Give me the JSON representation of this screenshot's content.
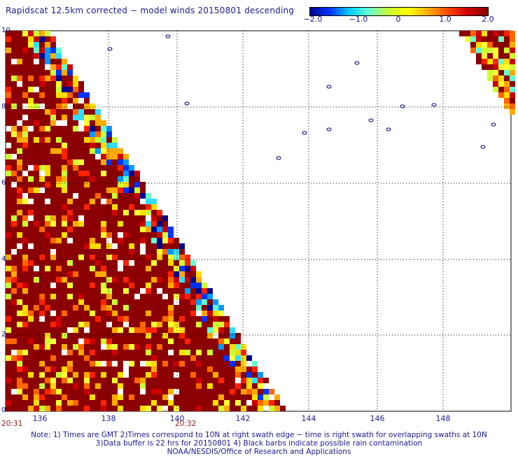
{
  "title": "Rapidscat 12.5km corrected − model winds 20150801 descending",
  "colorbar": {
    "labels": [
      "−2.0",
      "−1.0",
      "0",
      "1.0",
      "2.0"
    ],
    "min": -2.0,
    "max": 2.0,
    "colors": [
      "#00008b",
      "#0033ff",
      "#00ccff",
      "#66ffcc",
      "#ccff33",
      "#ffff00",
      "#ffaa00",
      "#ff4400",
      "#cc0000",
      "#8b0000"
    ]
  },
  "map": {
    "x_ticks": [
      "136",
      "138",
      "140",
      "142",
      "144",
      "146",
      "148"
    ],
    "y_ticks": [
      "10",
      "8",
      "6",
      "4",
      "2",
      "0"
    ],
    "lon_range": [
      135,
      149.5
    ],
    "lat_range": [
      0,
      10
    ]
  },
  "times": {
    "start": "20:31",
    "mid": "20:32"
  },
  "notes": [
    "Note: 1) Times are GMT 2)Times correspond to 10N at right swath edge − time is right swath for overlapping swaths at 10N",
    "3)Data buffer is 22 hrs for 20150801 4) Black barbs indicate possible rain contamination",
    "NOAA/NESDIS/Office of Research and Applications"
  ]
}
